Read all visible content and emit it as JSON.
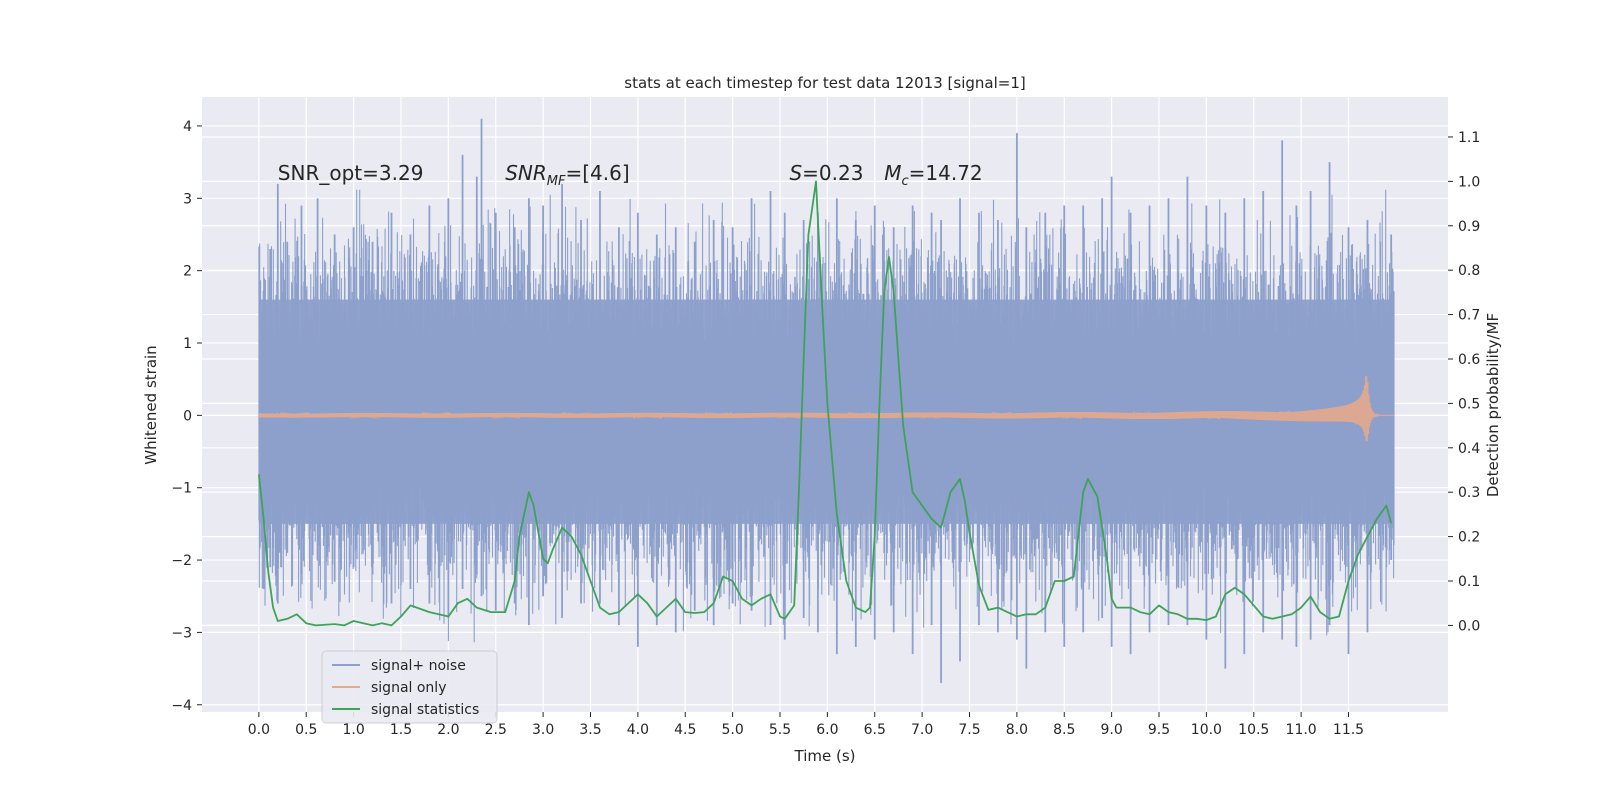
{
  "chart_data": {
    "type": "line",
    "title": "stats at each timestep for test data 12013 [signal=1]",
    "xlabel": "Time (s)",
    "ylabel_left": "Whitened strain",
    "ylabel_right": "Detection probability/MF",
    "xlim": [
      -0.6,
      12.55
    ],
    "ylim_left": [
      -4.1,
      4.4
    ],
    "ylim_right": [
      -0.195,
      1.19
    ],
    "grid": true,
    "x_ticks": [
      "0.0",
      "0.5",
      "1.0",
      "1.5",
      "2.0",
      "2.5",
      "3.0",
      "3.5",
      "4.0",
      "4.5",
      "5.0",
      "5.5",
      "6.0",
      "6.5",
      "7.0",
      "7.5",
      "8.0",
      "8.5",
      "9.0",
      "9.5",
      "10.0",
      "10.5",
      "11.0",
      "11.5"
    ],
    "y_ticks_left": [
      "4",
      "3",
      "2",
      "1",
      "0",
      "−1",
      "−2",
      "−3",
      "−4"
    ],
    "y_ticks_right": [
      "1.1",
      "1.0",
      "0.9",
      "0.8",
      "0.7",
      "0.6",
      "0.5",
      "0.4",
      "0.3",
      "0.2",
      "0.1",
      "0.0"
    ],
    "annotations": [
      {
        "id": "snr-opt",
        "text": "SNR_opt=3.29",
        "x": 0.2,
        "y": 3.25
      },
      {
        "id": "snr-mf",
        "text": "=[4.6]",
        "math_prefix": "SNR",
        "math_sub": "MF",
        "x": 2.6,
        "y": 3.25
      },
      {
        "id": "s-val",
        "text": "=0.23",
        "math_prefix": "S",
        "x": 5.6,
        "y": 3.25
      },
      {
        "id": "mc-val",
        "text": "=14.72",
        "math_prefix": "M",
        "math_sub": "c",
        "x": 6.6,
        "y": 3.25
      }
    ],
    "legend": {
      "placement": "lower-left",
      "entries": [
        {
          "label": "signal+ noise",
          "color": "#8da0cb"
        },
        {
          "label": "signal only",
          "color": "#e5a98c"
        },
        {
          "label": "signal statistics",
          "color": "#3fa25a"
        }
      ]
    },
    "series": [
      {
        "name": "signal+ noise",
        "axis": "left",
        "color": "#8da0cb",
        "kind": "dense-noise",
        "x_range": [
          0.0,
          11.98
        ],
        "band_typical": [
          -1.5,
          1.6
        ],
        "spike_samples": [
          [
            0.05,
            1.6,
            -2.4
          ],
          [
            0.12,
            2.3,
            -2.1
          ],
          [
            0.2,
            3.2,
            -2.6
          ],
          [
            0.3,
            2.4,
            -1.9
          ],
          [
            0.45,
            2.9,
            -2.2
          ],
          [
            0.62,
            3.0,
            -2.0
          ],
          [
            0.8,
            2.5,
            -2.3
          ],
          [
            1.0,
            2.6,
            -2.1
          ],
          [
            1.2,
            2.4,
            -2.2
          ],
          [
            1.4,
            2.8,
            -2.6
          ],
          [
            1.6,
            2.5,
            -2.4
          ],
          [
            1.8,
            2.9,
            -2.6
          ],
          [
            2.0,
            3.0,
            -2.8
          ],
          [
            2.15,
            3.6,
            -2.4
          ],
          [
            2.3,
            3.3,
            -2.2
          ],
          [
            2.35,
            4.1,
            -2.5
          ],
          [
            2.5,
            2.8,
            -2.7
          ],
          [
            2.7,
            2.6,
            -2.6
          ],
          [
            2.85,
            3.0,
            -2.9
          ],
          [
            3.0,
            2.9,
            -2.5
          ],
          [
            3.2,
            3.2,
            -2.8
          ],
          [
            3.4,
            2.7,
            -2.6
          ],
          [
            3.6,
            3.1,
            -2.6
          ],
          [
            3.8,
            2.6,
            -2.9
          ],
          [
            4.0,
            2.8,
            -3.2
          ],
          [
            4.2,
            2.5,
            -2.9
          ],
          [
            4.4,
            2.6,
            -3.0
          ],
          [
            4.6,
            2.4,
            -2.7
          ],
          [
            4.8,
            2.7,
            -2.9
          ],
          [
            5.0,
            2.6,
            -2.6
          ],
          [
            5.2,
            3.0,
            -2.7
          ],
          [
            5.4,
            3.1,
            -2.9
          ],
          [
            5.55,
            2.8,
            -3.1
          ],
          [
            5.75,
            2.7,
            -2.8
          ],
          [
            5.9,
            2.8,
            -3.0
          ],
          [
            6.1,
            3.0,
            -3.3
          ],
          [
            6.3,
            2.7,
            -3.2
          ],
          [
            6.5,
            2.9,
            -3.1
          ],
          [
            6.7,
            2.6,
            -3.0
          ],
          [
            6.9,
            2.9,
            -3.3
          ],
          [
            7.1,
            2.8,
            -2.9
          ],
          [
            7.2,
            2.7,
            -3.7
          ],
          [
            7.4,
            3.0,
            -3.4
          ],
          [
            7.6,
            2.8,
            -2.9
          ],
          [
            7.8,
            2.7,
            -3.0
          ],
          [
            8.0,
            3.9,
            -3.1
          ],
          [
            8.1,
            2.6,
            -3.5
          ],
          [
            8.3,
            2.8,
            -3.0
          ],
          [
            8.5,
            2.9,
            -3.2
          ],
          [
            8.7,
            2.9,
            -3.0
          ],
          [
            8.9,
            3.0,
            -2.8
          ],
          [
            9.0,
            3.3,
            -3.2
          ],
          [
            9.2,
            2.8,
            -3.3
          ],
          [
            9.4,
            2.9,
            -3.0
          ],
          [
            9.6,
            3.0,
            -2.9
          ],
          [
            9.8,
            3.3,
            -2.9
          ],
          [
            10.0,
            2.9,
            -3.1
          ],
          [
            10.2,
            2.8,
            -3.5
          ],
          [
            10.4,
            3.0,
            -3.3
          ],
          [
            10.6,
            3.1,
            -3.0
          ],
          [
            10.8,
            3.8,
            -3.1
          ],
          [
            10.95,
            2.9,
            -3.2
          ],
          [
            11.1,
            3.1,
            -3.1
          ],
          [
            11.3,
            3.5,
            -2.9
          ],
          [
            11.5,
            2.6,
            -3.3
          ],
          [
            11.7,
            2.7,
            -3.0
          ],
          [
            11.95,
            2.5,
            -2.0
          ]
        ]
      },
      {
        "name": "signal only",
        "axis": "left",
        "color": "#e5a98c",
        "kind": "chirp",
        "x_range": [
          0.0,
          11.98
        ],
        "merger_time": 11.7,
        "amplitude_start": 0.02,
        "amplitude_peak": 0.55
      },
      {
        "name": "signal statistics",
        "axis": "right",
        "color": "#3fa25a",
        "x": [
          0.0,
          0.05,
          0.1,
          0.15,
          0.2,
          0.3,
          0.4,
          0.5,
          0.6,
          0.8,
          0.9,
          1.0,
          1.2,
          1.3,
          1.4,
          1.5,
          1.6,
          1.8,
          2.0,
          2.1,
          2.2,
          2.3,
          2.45,
          2.6,
          2.7,
          2.75,
          2.85,
          2.9,
          3.0,
          3.05,
          3.1,
          3.2,
          3.3,
          3.4,
          3.5,
          3.6,
          3.7,
          3.8,
          3.9,
          4.0,
          4.1,
          4.2,
          4.3,
          4.4,
          4.5,
          4.6,
          4.7,
          4.8,
          4.9,
          5.0,
          5.1,
          5.2,
          5.3,
          5.4,
          5.5,
          5.55,
          5.6,
          5.65,
          5.7,
          5.75,
          5.8,
          5.88,
          5.95,
          6.0,
          6.1,
          6.2,
          6.3,
          6.4,
          6.45,
          6.5,
          6.55,
          6.6,
          6.65,
          6.7,
          6.75,
          6.8,
          6.9,
          7.0,
          7.1,
          7.2,
          7.3,
          7.4,
          7.45,
          7.5,
          7.6,
          7.7,
          7.8,
          7.9,
          8.0,
          8.1,
          8.2,
          8.3,
          8.4,
          8.5,
          8.6,
          8.7,
          8.75,
          8.85,
          8.95,
          9.0,
          9.05,
          9.1,
          9.2,
          9.3,
          9.4,
          9.5,
          9.6,
          9.7,
          9.8,
          9.9,
          10.0,
          10.1,
          10.2,
          10.3,
          10.4,
          10.5,
          10.6,
          10.7,
          10.8,
          10.9,
          11.0,
          11.1,
          11.2,
          11.3,
          11.4,
          11.5,
          11.6,
          11.7,
          11.8,
          11.9,
          11.95
        ],
        "y": [
          0.34,
          0.24,
          0.12,
          0.04,
          0.01,
          0.015,
          0.025,
          0.005,
          0.0,
          0.003,
          0.0,
          0.01,
          0.0,
          0.005,
          0.0,
          0.02,
          0.045,
          0.03,
          0.02,
          0.05,
          0.06,
          0.04,
          0.03,
          0.03,
          0.1,
          0.2,
          0.3,
          0.27,
          0.15,
          0.14,
          0.17,
          0.22,
          0.2,
          0.16,
          0.1,
          0.04,
          0.025,
          0.03,
          0.05,
          0.07,
          0.05,
          0.02,
          0.04,
          0.06,
          0.03,
          0.028,
          0.03,
          0.05,
          0.11,
          0.1,
          0.06,
          0.045,
          0.06,
          0.07,
          0.02,
          0.015,
          0.03,
          0.045,
          0.3,
          0.6,
          0.88,
          1.0,
          0.7,
          0.5,
          0.25,
          0.1,
          0.04,
          0.03,
          0.04,
          0.2,
          0.5,
          0.75,
          0.83,
          0.75,
          0.6,
          0.45,
          0.3,
          0.27,
          0.24,
          0.22,
          0.3,
          0.33,
          0.28,
          0.21,
          0.09,
          0.035,
          0.04,
          0.03,
          0.02,
          0.025,
          0.025,
          0.04,
          0.1,
          0.1,
          0.11,
          0.3,
          0.33,
          0.29,
          0.15,
          0.06,
          0.04,
          0.04,
          0.04,
          0.03,
          0.025,
          0.045,
          0.03,
          0.025,
          0.015,
          0.015,
          0.012,
          0.02,
          0.07,
          0.085,
          0.07,
          0.045,
          0.02,
          0.015,
          0.02,
          0.025,
          0.04,
          0.065,
          0.03,
          0.015,
          0.02,
          0.1,
          0.16,
          0.2,
          0.24,
          0.27,
          0.23
        ]
      }
    ]
  }
}
